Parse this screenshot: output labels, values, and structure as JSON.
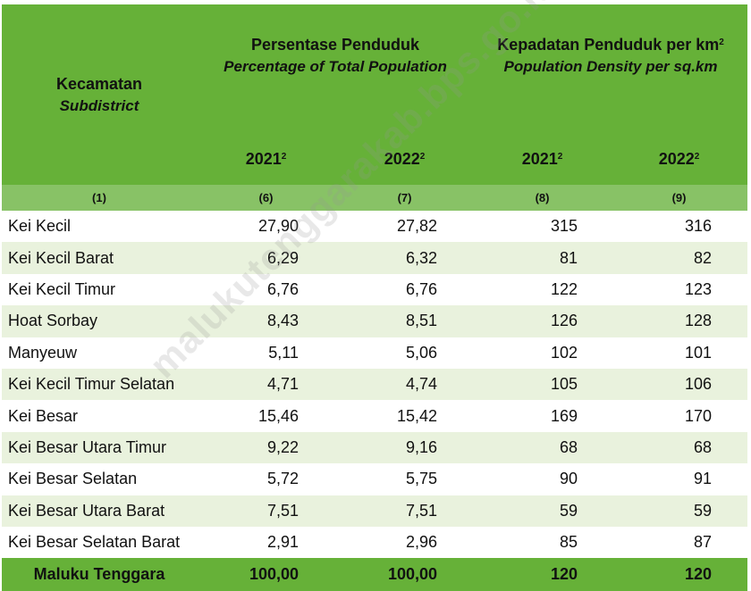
{
  "header": {
    "subdistrict_id": "Kecamatan",
    "subdistrict_en": "Subdistrict",
    "percentage_id": "Persentase Penduduk",
    "percentage_en": "Percentage of Total Population",
    "density_id": "Kepadatan Penduduk per km",
    "density_sup": "2",
    "density_en": "Population Density per sq.km",
    "years": [
      "2021",
      "2022",
      "2021",
      "2022"
    ],
    "year_sup": "2",
    "col_numbers": [
      "(1)",
      "(6)",
      "(7)",
      "(8)",
      "(9)"
    ]
  },
  "rows": [
    {
      "name": "Kei Kecil",
      "pct_2021": "27,90",
      "pct_2022": "27,82",
      "dens_2021": "315",
      "dens_2022": "316"
    },
    {
      "name": "Kei Kecil Barat",
      "pct_2021": "6,29",
      "pct_2022": "6,32",
      "dens_2021": "81",
      "dens_2022": "82"
    },
    {
      "name": "Kei Kecil Timur",
      "pct_2021": "6,76",
      "pct_2022": "6,76",
      "dens_2021": "122",
      "dens_2022": "123"
    },
    {
      "name": "Hoat Sorbay",
      "pct_2021": "8,43",
      "pct_2022": "8,51",
      "dens_2021": "126",
      "dens_2022": "128"
    },
    {
      "name": "Manyeuw",
      "pct_2021": "5,11",
      "pct_2022": "5,06",
      "dens_2021": "102",
      "dens_2022": "101"
    },
    {
      "name": "Kei Kecil Timur Selatan",
      "pct_2021": "4,71",
      "pct_2022": "4,74",
      "dens_2021": "105",
      "dens_2022": "106"
    },
    {
      "name": "Kei Besar",
      "pct_2021": "15,46",
      "pct_2022": "15,42",
      "dens_2021": "169",
      "dens_2022": "170"
    },
    {
      "name": "Kei Besar Utara Timur",
      "pct_2021": "9,22",
      "pct_2022": "9,16",
      "dens_2021": "68",
      "dens_2022": "68"
    },
    {
      "name": "Kei Besar Selatan",
      "pct_2021": "5,72",
      "pct_2022": "5,75",
      "dens_2021": "90",
      "dens_2022": "91"
    },
    {
      "name": "Kei Besar Utara Barat",
      "pct_2021": "7,51",
      "pct_2022": "7,51",
      "dens_2021": "59",
      "dens_2022": "59"
    },
    {
      "name": "Kei Besar Selatan Barat",
      "pct_2021": "2,91",
      "pct_2022": "2,96",
      "dens_2021": "85",
      "dens_2022": "87"
    }
  ],
  "total": {
    "name": "Maluku Tenggara",
    "pct_2021": "100,00",
    "pct_2022": "100,00",
    "dens_2021": "120",
    "dens_2022": "120"
  },
  "watermark": "malukutenggarakab.bps.go.id",
  "colors": {
    "header_green": "#66b138",
    "number_row_green": "#88c266",
    "stripe": "#e9f2dd"
  }
}
